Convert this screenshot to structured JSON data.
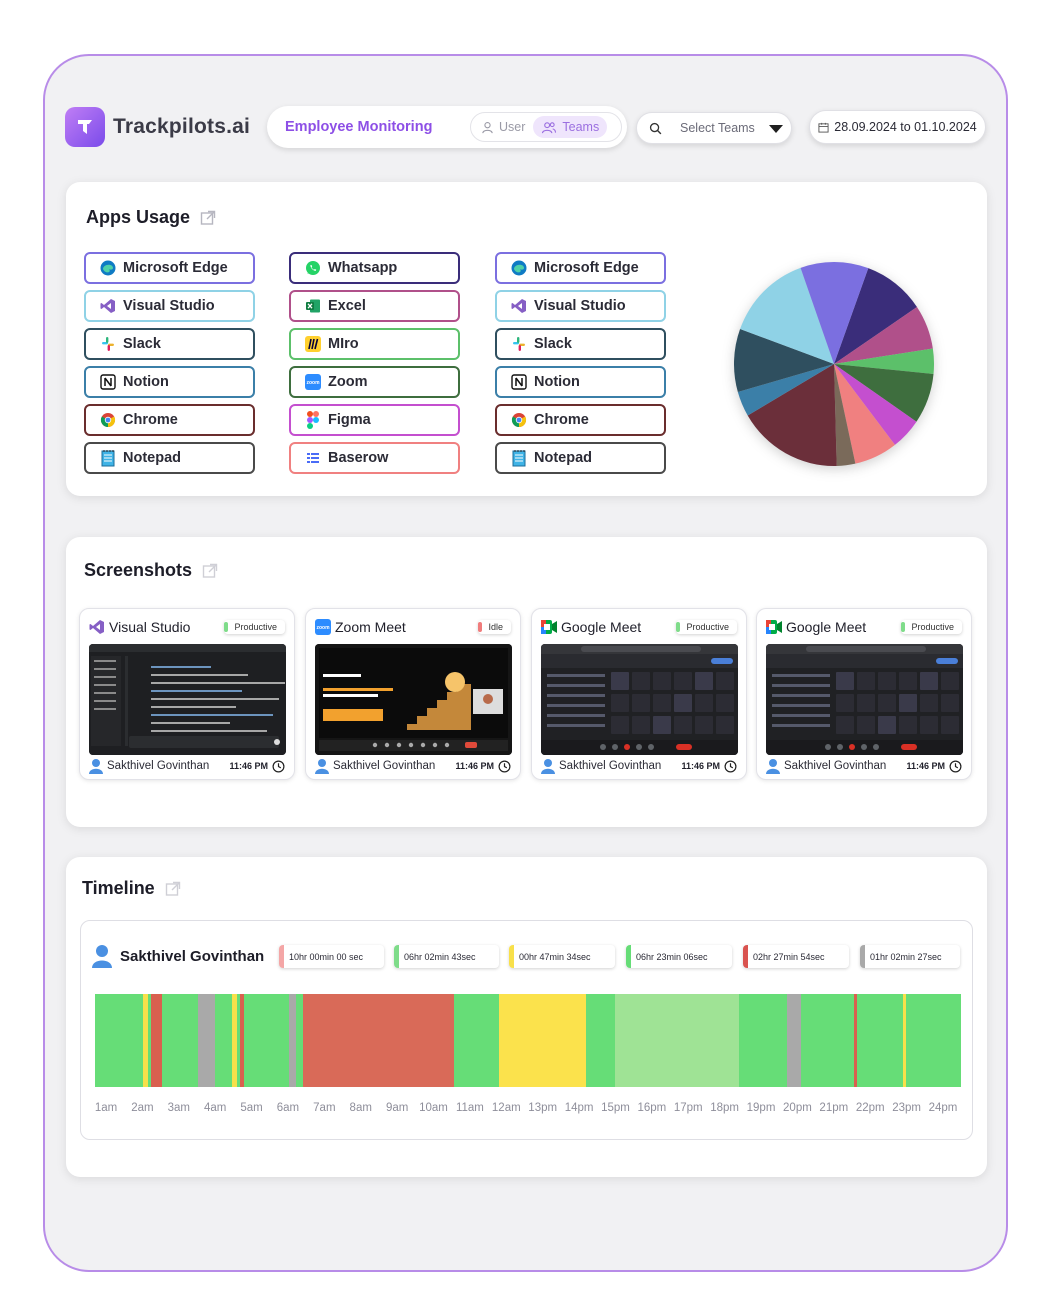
{
  "brand": {
    "name": "Trackpilots.ai"
  },
  "header": {
    "title": "Employee Monitoring",
    "toggle": {
      "user_label": "User",
      "teams_label": "Teams",
      "active": "Teams"
    },
    "team_select_placeholder": "Select Teams",
    "date_range": "28.09.2024 to 01.10.2024"
  },
  "apps_usage": {
    "title": "Apps Usage",
    "columns": [
      [
        {
          "label": "Microsoft Edge",
          "icon": "edge-icon",
          "border": "#7b6fe0"
        },
        {
          "label": "Visual Studio",
          "icon": "visual-studio-icon",
          "border": "#8fd2e6"
        },
        {
          "label": "Slack",
          "icon": "slack-icon",
          "border": "#2f4f5f"
        },
        {
          "label": "Notion",
          "icon": "notion-icon",
          "border": "#3b7fa8"
        },
        {
          "label": "Chrome",
          "icon": "chrome-icon",
          "border": "#6a2d2d"
        },
        {
          "label": "Notepad",
          "icon": "notepad-icon",
          "border": "#4a4a4a"
        }
      ],
      [
        {
          "label": "Whatsapp",
          "icon": "whatsapp-icon",
          "border": "#3a2d7a"
        },
        {
          "label": "Excel",
          "icon": "excel-icon",
          "border": "#b0508a"
        },
        {
          "label": "MIro",
          "icon": "miro-icon",
          "border": "#5cc06a"
        },
        {
          "label": "Zoom",
          "icon": "zoom-icon",
          "border": "#3e6e3e"
        },
        {
          "label": "Figma",
          "icon": "figma-icon",
          "border": "#c44fcf"
        },
        {
          "label": "Baserow",
          "icon": "baserow-icon",
          "border": "#f08080"
        }
      ],
      [
        {
          "label": "Microsoft Edge",
          "icon": "edge-icon",
          "border": "#7b6fe0"
        },
        {
          "label": "Visual Studio",
          "icon": "visual-studio-icon",
          "border": "#8fd2e6"
        },
        {
          "label": "Slack",
          "icon": "slack-icon",
          "border": "#2f4f5f"
        },
        {
          "label": "Notion",
          "icon": "notion-icon",
          "border": "#3b7fa8"
        },
        {
          "label": "Chrome",
          "icon": "chrome-icon",
          "border": "#6a2d2d"
        },
        {
          "label": "Notepad",
          "icon": "notepad-icon",
          "border": "#4a4a4a"
        }
      ]
    ],
    "pie_slices": [
      {
        "color": "#3a2d7a",
        "value": 10
      },
      {
        "color": "#b0508a",
        "value": 7
      },
      {
        "color": "#5cc06a",
        "value": 4
      },
      {
        "color": "#3e6e3e",
        "value": 8
      },
      {
        "color": "#c44fcf",
        "value": 5
      },
      {
        "color": "#f08080",
        "value": 7
      },
      {
        "color": "#7a6a5a",
        "value": 3
      },
      {
        "color": "#6b2f3a",
        "value": 17
      },
      {
        "color": "#3b7fa8",
        "value": 4
      },
      {
        "color": "#2f4f5f",
        "value": 10
      },
      {
        "color": "#8fd2e6",
        "value": 14
      },
      {
        "color": "#7b6fe0",
        "value": 11
      }
    ]
  },
  "screenshots": {
    "title": "Screenshots",
    "items": [
      {
        "app": "Visual Studio",
        "icon": "visual-studio-icon",
        "status": "Productive",
        "status_color": "#7fdc8a",
        "user": "Sakthivel Govinthan",
        "time": "11:46 PM"
      },
      {
        "app": "Zoom Meet",
        "icon": "zoom-icon",
        "status": "Idle",
        "status_color": "#f07c7c",
        "user": "Sakthivel Govinthan",
        "time": "11:46 PM"
      },
      {
        "app": "Google Meet",
        "icon": "google-meet-icon",
        "status": "Productive",
        "status_color": "#7fdc8a",
        "user": "Sakthivel Govinthan",
        "time": "11:46 PM"
      },
      {
        "app": "Google Meet",
        "icon": "google-meet-icon",
        "status": "Productive",
        "status_color": "#7fdc8a",
        "user": "Sakthivel Govinthan",
        "time": "11:46 PM"
      }
    ]
  },
  "timeline": {
    "title": "Timeline",
    "user": "Sakthivel Govinthan",
    "stats": [
      {
        "label": "10hr 00min 00 sec",
        "color": "#f4a6a6"
      },
      {
        "label": "06hr 02min 43sec",
        "color": "#7fdc8a"
      },
      {
        "label": "00hr 47min 34sec",
        "color": "#f8e04a"
      },
      {
        "label": "06hr 23min 06sec",
        "color": "#66dd77"
      },
      {
        "label": "02hr 27min 54sec",
        "color": "#d9534f"
      },
      {
        "label": "01hr 02min 27sec",
        "color": "#a9a9a9"
      }
    ],
    "hours": [
      "1am",
      "2am",
      "3am",
      "4am",
      "5am",
      "6am",
      "7am",
      "8am",
      "9am",
      "10am",
      "11am",
      "12am",
      "13pm",
      "14pm",
      "15pm",
      "16pm",
      "17pm",
      "18pm",
      "19pm",
      "20pm",
      "21pm",
      "22pm",
      "23pm",
      "24pm"
    ],
    "segments": [
      {
        "start": 0.055,
        "end": 0.061,
        "color": "#f8e04a"
      },
      {
        "start": 0.065,
        "end": 0.077,
        "color": "#d9604f"
      },
      {
        "start": 0.119,
        "end": 0.138,
        "color": "#a9a9a9"
      },
      {
        "start": 0.158,
        "end": 0.164,
        "color": "#f8e04a"
      },
      {
        "start": 0.167,
        "end": 0.172,
        "color": "#d9604f"
      },
      {
        "start": 0.224,
        "end": 0.232,
        "color": "#a9a9a9"
      },
      {
        "start": 0.24,
        "end": 0.415,
        "color": "#d96a58"
      },
      {
        "start": 0.467,
        "end": 0.567,
        "color": "#fbe24c"
      },
      {
        "start": 0.601,
        "end": 0.744,
        "color": "#9fe395"
      },
      {
        "start": 0.799,
        "end": 0.815,
        "color": "#a9a9a9"
      },
      {
        "start": 0.876,
        "end": 0.88,
        "color": "#d9604f"
      },
      {
        "start": 0.933,
        "end": 0.937,
        "color": "#f8e04a"
      }
    ]
  }
}
